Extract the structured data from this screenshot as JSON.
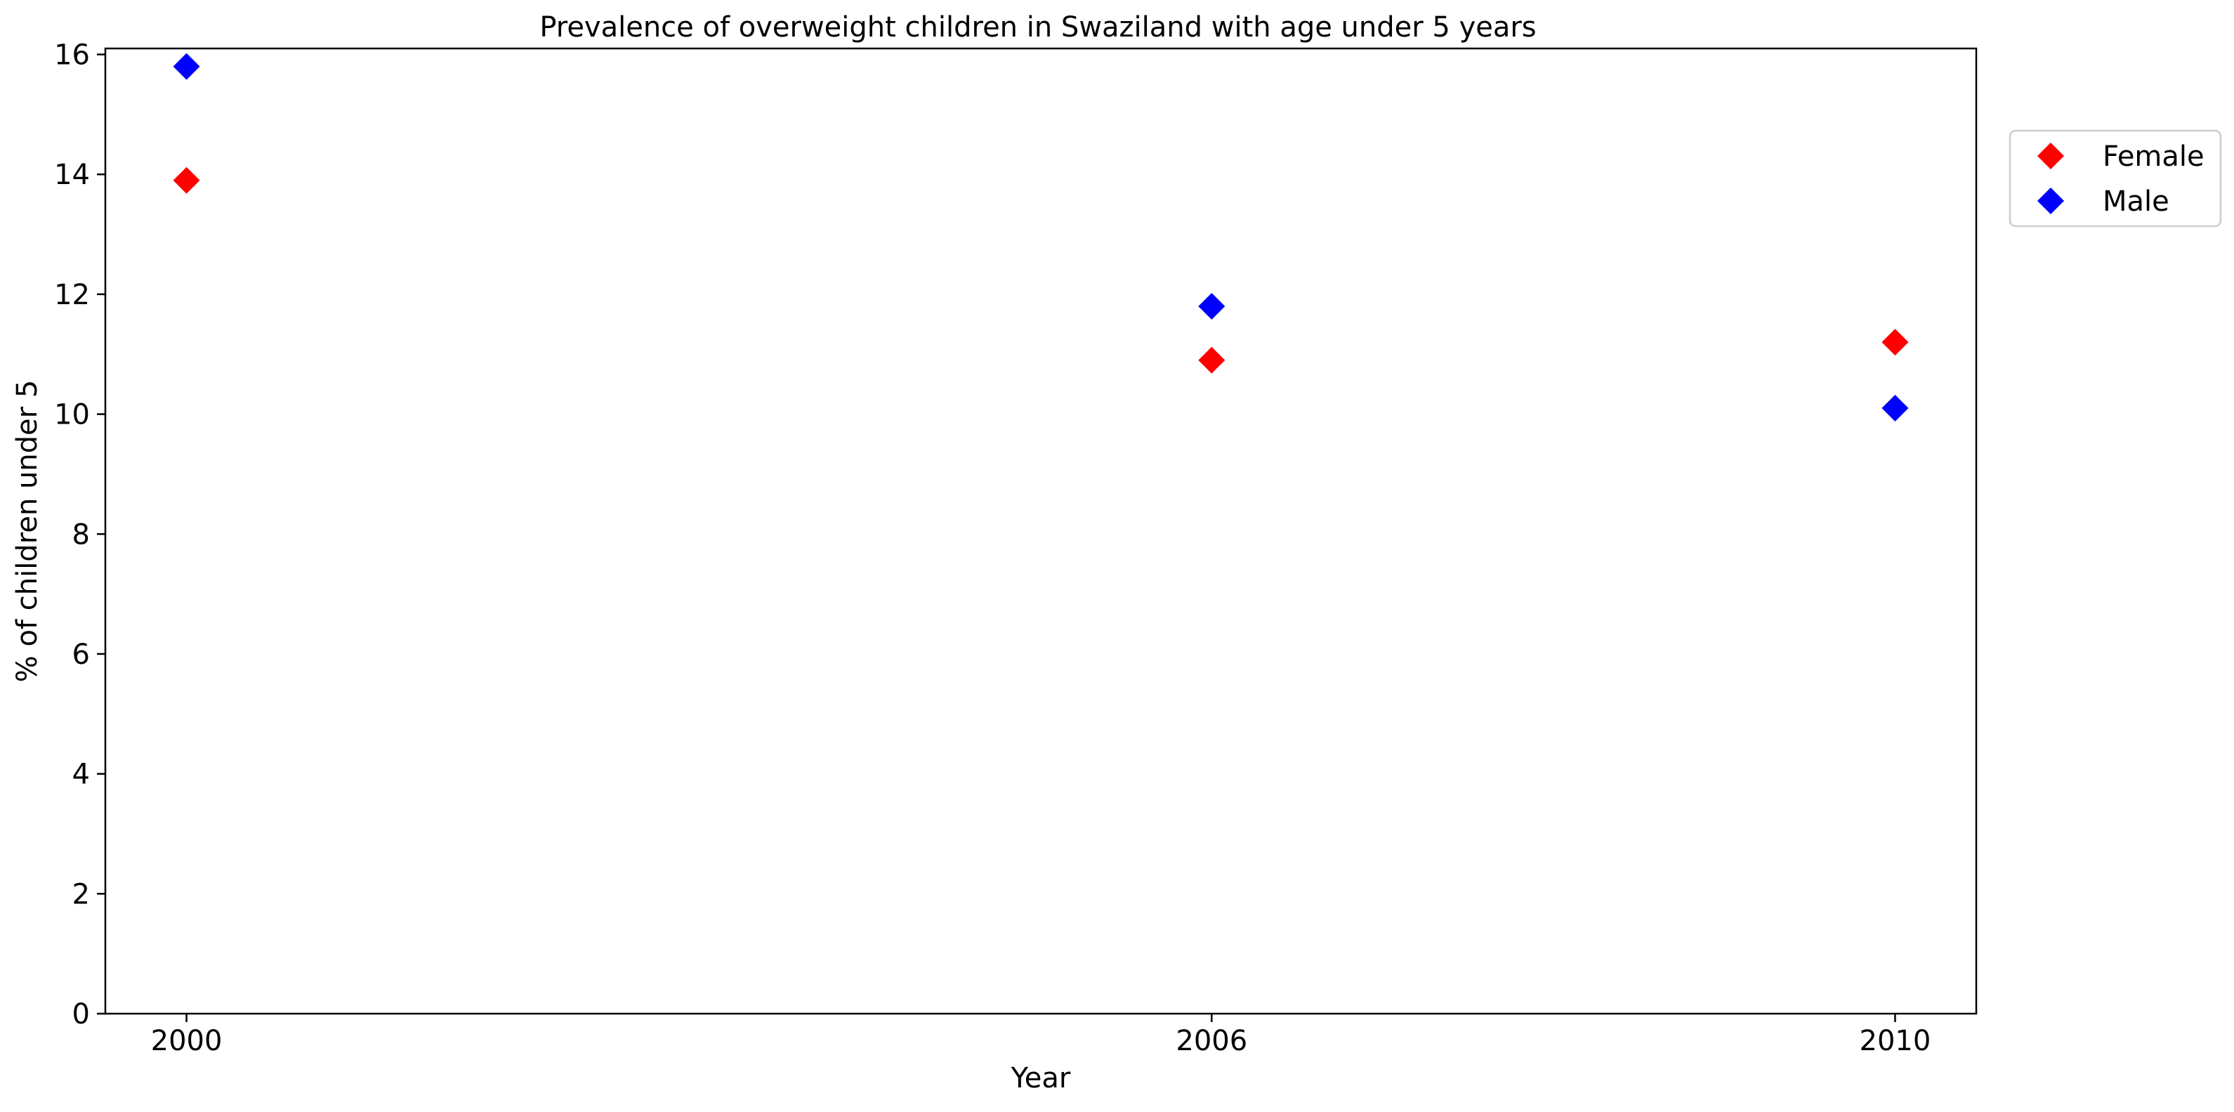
{
  "chart_data": {
    "type": "scatter",
    "title": "Prevalence of overweight children in Swaziland with age under 5 years",
    "xlabel": "Year",
    "ylabel": "% of children under 5",
    "categories": [
      "2000",
      "2006",
      "2010"
    ],
    "ylim": [
      0,
      16.1
    ],
    "yticks": [
      0,
      2,
      4,
      6,
      8,
      10,
      12,
      14,
      16
    ],
    "grid": false,
    "legend_position": "outside-top-right",
    "marker": "diamond",
    "series": [
      {
        "name": "Female",
        "color": "#ff0000",
        "values": [
          13.9,
          10.9,
          11.2
        ]
      },
      {
        "name": "Male",
        "color": "#0000ff",
        "values": [
          15.8,
          11.8,
          10.1
        ]
      }
    ]
  }
}
